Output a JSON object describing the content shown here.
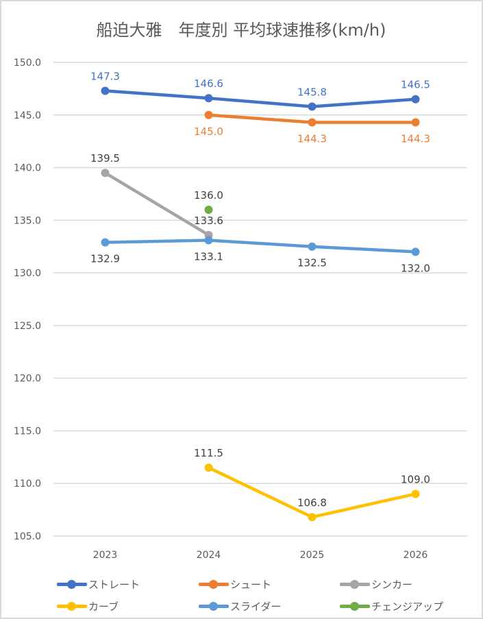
{
  "chart_data": {
    "type": "line",
    "title": "船迫大雅　年度別 平均球速推移(km/h)",
    "xlabel": "",
    "ylabel": "",
    "categories": [
      "2023",
      "2024",
      "2025",
      "2026"
    ],
    "ylim": [
      105,
      150
    ],
    "yticks": [
      "150.0",
      "145.0",
      "140.0",
      "135.0",
      "130.0",
      "125.0",
      "120.0",
      "115.0",
      "110.0",
      "105.0"
    ],
    "grid": true,
    "legend_position": "bottom",
    "series": [
      {
        "name": "ストレート",
        "color": "#4472C4",
        "values": [
          147.3,
          146.6,
          145.8,
          146.5
        ],
        "labels": [
          "147.3",
          "146.6",
          "145.8",
          "146.5"
        ],
        "label_pos": "above"
      },
      {
        "name": "シュート",
        "color": "#ED7D31",
        "values": [
          null,
          145.0,
          144.3,
          144.3
        ],
        "labels": [
          null,
          "145.0",
          "144.3",
          "144.3"
        ],
        "label_pos": "below"
      },
      {
        "name": "シンカー",
        "color": "#A5A5A5",
        "values": [
          139.5,
          133.6,
          null,
          null
        ],
        "labels": [
          "139.5",
          "133.6",
          null,
          null
        ],
        "label_pos": "above"
      },
      {
        "name": "カーブ",
        "color": "#FFC000",
        "values": [
          null,
          111.5,
          106.8,
          109.0
        ],
        "labels": [
          null,
          "111.5",
          "106.8",
          "109.0"
        ],
        "label_pos": "above"
      },
      {
        "name": "スライダー",
        "color": "#5B9BD5",
        "values": [
          132.9,
          133.1,
          132.5,
          132.0
        ],
        "labels": [
          "132.9",
          "133.1",
          "132.5",
          "132.0"
        ],
        "label_pos": "below"
      },
      {
        "name": "チェンジアップ",
        "color": "#70AD47",
        "values": [
          null,
          136.0,
          null,
          null
        ],
        "labels": [
          null,
          "136.0",
          null,
          null
        ],
        "label_pos": "above"
      }
    ]
  }
}
